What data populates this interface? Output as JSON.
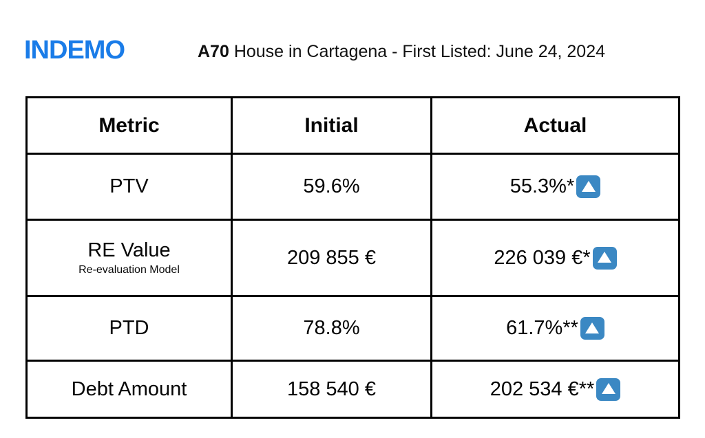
{
  "brand": {
    "name": "INDEMO",
    "color": "#1a7ce8"
  },
  "header": {
    "project_code": "A70",
    "title_rest": " House in Cartagena - First Listed: June 24, 2024"
  },
  "table": {
    "columns": [
      "Metric",
      "Initial",
      "Actual"
    ],
    "rows": [
      {
        "metric": "PTV",
        "metric_note": "",
        "initial": "59.6%",
        "actual": "55.3%*",
        "actual_icon": "up-button"
      },
      {
        "metric": "RE Value",
        "metric_note": "Re-evaluation Model",
        "initial": "209 855 €",
        "actual": "226 039 €*",
        "actual_icon": "up-button"
      },
      {
        "metric": "PTD",
        "metric_note": "",
        "initial": "78.8%",
        "actual": "61.7%**",
        "actual_icon": "up-button"
      },
      {
        "metric": "Debt Amount",
        "metric_note": "",
        "initial": "158 540 €",
        "actual": "202 534 €**",
        "actual_icon": "up-button"
      }
    ],
    "up_icon_color": "#3b88c3",
    "border_color": "#000000"
  }
}
